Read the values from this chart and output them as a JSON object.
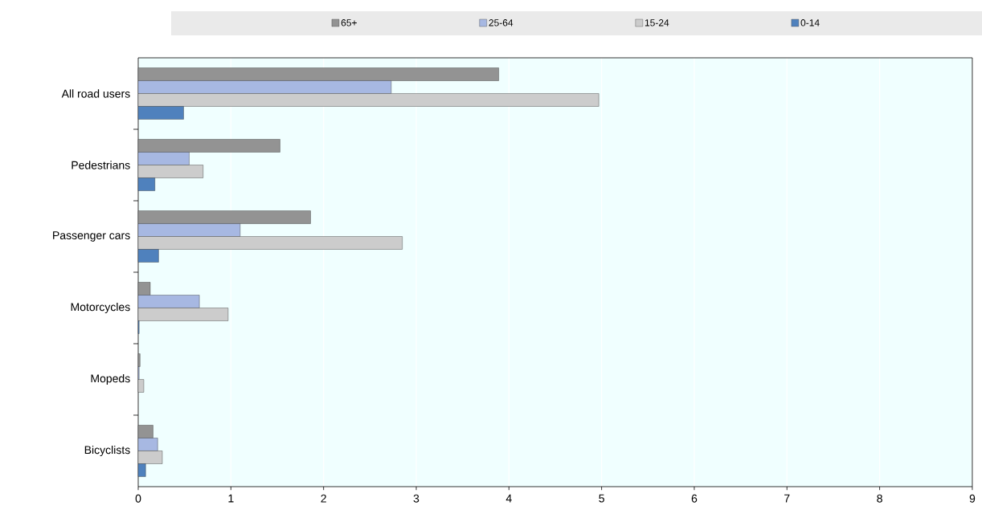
{
  "chart_data": {
    "type": "bar",
    "orientation": "horizontal",
    "categories": [
      "All road users",
      "Pedestrians",
      "Passenger cars",
      "Motorcycles",
      "Mopeds",
      "Bicyclists"
    ],
    "series": [
      {
        "name": "65+",
        "color": "#939393",
        "values": [
          3.89,
          1.53,
          1.86,
          0.13,
          0.02,
          0.16
        ]
      },
      {
        "name": "25-64",
        "color": "#a7b8e2",
        "values": [
          2.73,
          0.55,
          1.1,
          0.66,
          0.01,
          0.21
        ]
      },
      {
        "name": "15-24",
        "color": "#cccccc",
        "values": [
          4.97,
          0.7,
          2.85,
          0.97,
          0.06,
          0.26
        ]
      },
      {
        "name": "0-14",
        "color": "#4f81bd",
        "values": [
          0.49,
          0.18,
          0.22,
          0.01,
          null,
          0.08
        ]
      }
    ],
    "xlim": [
      0,
      9
    ],
    "xticks": [
      0,
      1,
      2,
      3,
      4,
      5,
      6,
      7,
      8,
      9
    ],
    "grid": "x",
    "legend": "top"
  }
}
